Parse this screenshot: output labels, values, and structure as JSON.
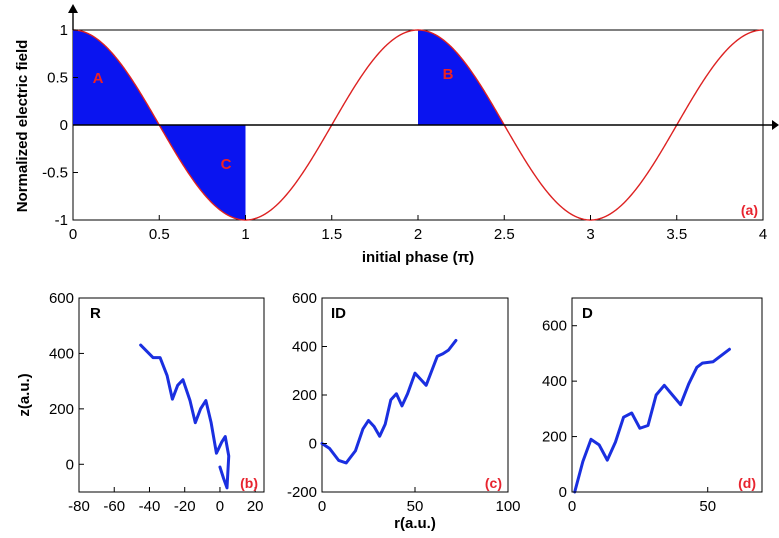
{
  "chart_data": [
    {
      "id": "a",
      "type": "line",
      "panel_label": "(a)",
      "xlabel": "initial phase (π)",
      "ylabel": "Normalized electric field",
      "xlim": [
        0,
        4
      ],
      "ylim": [
        -1,
        1
      ],
      "xticks": [
        "0",
        "0.5",
        "1",
        "1.5",
        "2",
        "2.5",
        "3",
        "3.5",
        "4"
      ],
      "yticks": [
        "-1",
        "-0.5",
        "0",
        "0.5",
        "1"
      ],
      "series": [
        {
          "function": "cos(pi*x)",
          "x_range": [
            0,
            4
          ],
          "color": "#dd2222"
        }
      ],
      "filled_regions": [
        {
          "label": "A",
          "x_range": [
            0,
            0.5
          ],
          "color": "#0a14f0"
        },
        {
          "label": "C",
          "x_range": [
            0.5,
            1
          ],
          "color": "#0a14f0"
        },
        {
          "label": "B",
          "x_range": [
            2,
            2.5
          ],
          "color": "#0a14f0"
        }
      ],
      "region_label_color": "#ee2222",
      "grid": false
    },
    {
      "id": "b",
      "type": "line",
      "panel_label": "(b)",
      "name": "R",
      "ylabel": "z(a.u.)",
      "xlim": [
        -80,
        25
      ],
      "ylim": [
        -100,
        600
      ],
      "xticks": [
        "-80",
        "-60",
        "-40",
        "-20",
        "0",
        "20"
      ],
      "yticks": [
        "0",
        "200",
        "400",
        "600"
      ],
      "series": [
        {
          "color": "#1a2fe0",
          "points": [
            [
              -45,
              430
            ],
            [
              -38,
              385
            ],
            [
              -34,
              385
            ],
            [
              -30,
              320
            ],
            [
              -27,
              235
            ],
            [
              -24,
              285
            ],
            [
              -21,
              305
            ],
            [
              -17,
              230
            ],
            [
              -14,
              150
            ],
            [
              -11,
              200
            ],
            [
              -8,
              230
            ],
            [
              -5,
              150
            ],
            [
              -2,
              40
            ],
            [
              1,
              80
            ],
            [
              3,
              100
            ],
            [
              5,
              30
            ],
            [
              4,
              -85
            ],
            [
              2,
              -50
            ],
            [
              0,
              -10
            ]
          ]
        }
      ],
      "grid": false
    },
    {
      "id": "c",
      "type": "line",
      "panel_label": "(c)",
      "name": "ID",
      "xlabel": "r(a.u.)",
      "xlim": [
        0,
        100
      ],
      "ylim": [
        -200,
        600
      ],
      "xticks": [
        "0",
        "50",
        "100"
      ],
      "yticks": [
        "-200",
        "0",
        "200",
        "400",
        "600"
      ],
      "series": [
        {
          "color": "#1a2fe0",
          "points": [
            [
              0,
              0
            ],
            [
              4,
              -20
            ],
            [
              9,
              -70
            ],
            [
              13,
              -80
            ],
            [
              18,
              -30
            ],
            [
              22,
              60
            ],
            [
              25,
              95
            ],
            [
              28,
              70
            ],
            [
              31,
              30
            ],
            [
              34,
              80
            ],
            [
              37,
              180
            ],
            [
              40,
              205
            ],
            [
              43,
              155
            ],
            [
              46,
              205
            ],
            [
              50,
              290
            ],
            [
              53,
              265
            ],
            [
              56,
              240
            ],
            [
              59,
              300
            ],
            [
              62,
              360
            ],
            [
              65,
              370
            ],
            [
              68,
              385
            ],
            [
              72,
              425
            ]
          ]
        }
      ],
      "grid": false
    },
    {
      "id": "d",
      "type": "line",
      "panel_label": "(d)",
      "name": "D",
      "xlim": [
        0,
        70
      ],
      "ylim": [
        0,
        700
      ],
      "xticks": [
        "0",
        "50"
      ],
      "yticks": [
        "0",
        "200",
        "400",
        "600"
      ],
      "series": [
        {
          "color": "#1a2fe0",
          "points": [
            [
              1,
              0
            ],
            [
              4,
              110
            ],
            [
              7,
              190
            ],
            [
              10,
              170
            ],
            [
              13,
              115
            ],
            [
              16,
              180
            ],
            [
              19,
              270
            ],
            [
              22,
              285
            ],
            [
              25,
              230
            ],
            [
              28,
              240
            ],
            [
              31,
              350
            ],
            [
              34,
              385
            ],
            [
              37,
              350
            ],
            [
              40,
              315
            ],
            [
              43,
              390
            ],
            [
              46,
              450
            ],
            [
              48,
              465
            ],
            [
              52,
              470
            ],
            [
              58,
              515
            ]
          ]
        }
      ],
      "grid": false
    }
  ]
}
